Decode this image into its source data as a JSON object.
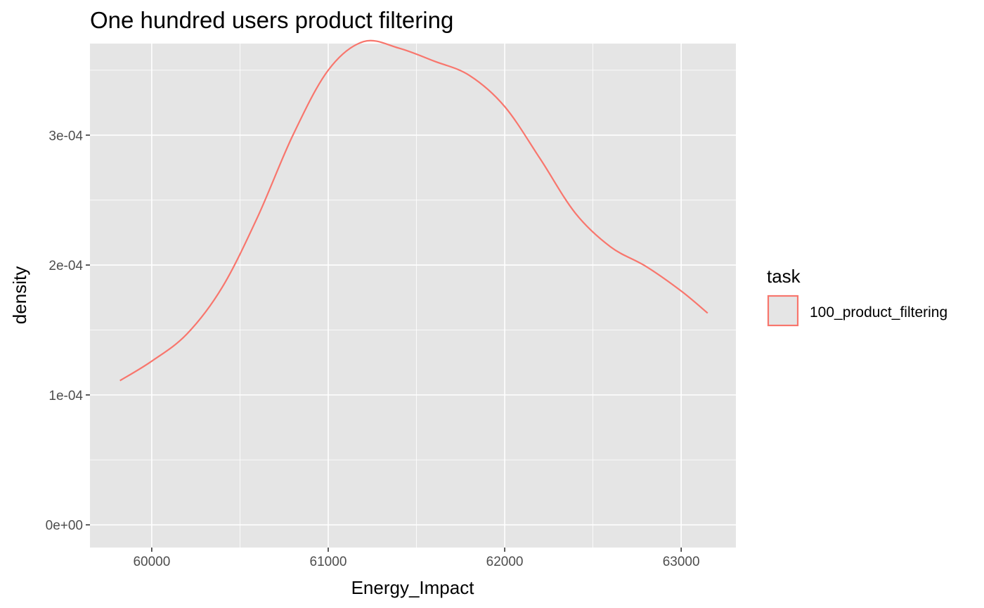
{
  "chart_data": {
    "type": "line",
    "title": "One hundred users product filtering",
    "xlabel": "Energy_Impact",
    "ylabel": "density",
    "xlim": [
      59650,
      63310
    ],
    "ylim": [
      -1.75e-05,
      0.0003705
    ],
    "x_ticks": [
      60000,
      61000,
      62000,
      63000
    ],
    "x_tick_labels": [
      "60000",
      "61000",
      "62000",
      "63000"
    ],
    "y_ticks": [
      0,
      0.0001,
      0.0002,
      0.0003
    ],
    "y_tick_labels": [
      "0e+00",
      "1e-04",
      "2e-04",
      "3e-04"
    ],
    "grid": true,
    "legend": {
      "title": "task",
      "position": "right",
      "entries": [
        "100_product_filtering"
      ]
    },
    "colors": {
      "panel_background": "#e5e5e5",
      "grid_major": "#ffffff",
      "series": "#f8766d"
    },
    "series": [
      {
        "name": "100_product_filtering",
        "x": [
          59820,
          60000,
          60200,
          60400,
          60600,
          60800,
          61000,
          61200,
          61400,
          61600,
          61800,
          62000,
          62200,
          62400,
          62600,
          62800,
          63000,
          63150
        ],
        "y": [
          0.000111,
          0.000126,
          0.000147,
          0.000183,
          0.000237,
          0.0003,
          0.00035,
          0.000372,
          0.000367,
          0.000357,
          0.000346,
          0.000322,
          0.000282,
          0.00024,
          0.000214,
          0.000199,
          0.00018,
          0.000163
        ]
      }
    ]
  }
}
